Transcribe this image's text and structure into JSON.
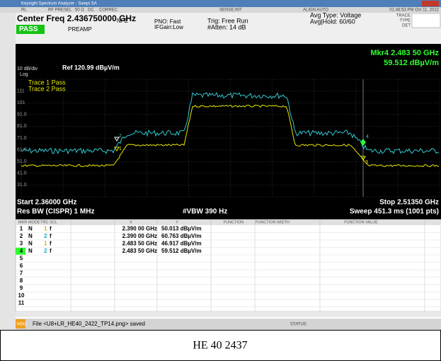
{
  "titlebar": {
    "title": "Keysight Spectrum Analyzer - Swept SA"
  },
  "status_row": {
    "rl": "RL",
    "rf_presel": "RF PRESEL",
    "impedance": "50 Ω",
    "coupling": "DC",
    "correc": "CORREC",
    "sense": "SENSE:INT",
    "align": "ALIGN AUTO",
    "datetime": "01:48:53 PM Oct 11, 2022"
  },
  "header": {
    "center_freq": "Center Freq 2.436750000 GHz",
    "pass": "PASS",
    "preamp": "PREAMP",
    "nfe": "NFE",
    "pno": "PNO: Fast",
    "ifgain": "IFGain:Low",
    "trig": "Trig: Free Run",
    "atten": "#Atten: 14 dB",
    "avg_type": "Avg Type: Voltage",
    "avg_hold": "Avg|Hold: 60/60",
    "trace": "TRACE",
    "type": "TYPE",
    "det": "DET"
  },
  "plot": {
    "scale": "10 dB/div",
    "log": "Log",
    "ref": "Ref 120.99 dBµV/m",
    "marker_freq": "Mkr4 2.483 50 GHz",
    "marker_level": "59.512 dBµV/m",
    "trace1": "Trace 1 Pass",
    "trace2": "Trace 2 Pass",
    "y_labels": [
      "111",
      "101",
      "91.0",
      "81.0",
      "71.0",
      "61.0",
      "51.0",
      "41.0",
      "31.0"
    ],
    "markers": [
      "1",
      "2",
      "3",
      "4"
    ]
  },
  "footer": {
    "start": "Start 2.36000 GHz",
    "stop": "Stop 2.51350 GHz",
    "rbw": "Res BW (CISPR) 1 MHz",
    "vbw": "#VBW 390 Hz",
    "sweep": "Sweep  451.3 ms (1001 pts)"
  },
  "table": {
    "headers": [
      "MKR",
      "MODE",
      "TRC",
      "SCL",
      "X",
      "Y",
      "FUNCTION",
      "FUNCTION WIDTH",
      "FUNCTION VALUE"
    ],
    "rows": [
      [
        "1",
        "N",
        "1",
        "f",
        "2.390 00 GHz",
        "50.013 dBµV/m"
      ],
      [
        "2",
        "N",
        "2",
        "f",
        "2.390 00 GHz",
        "60.763 dBµV/m"
      ],
      [
        "3",
        "N",
        "1",
        "f",
        "2.483 50 GHz",
        "46.917 dBµV/m"
      ],
      [
        "4",
        "N",
        "2",
        "f",
        "2.483 50 GHz",
        "59.512 dBµV/m"
      ],
      [
        "5"
      ],
      [
        "6"
      ],
      [
        "7"
      ],
      [
        "8"
      ],
      [
        "9"
      ],
      [
        "10"
      ],
      [
        "11"
      ]
    ]
  },
  "messagebar": {
    "msg": "MSG",
    "file": "File <U8+LR_HE40_2422_TP14.png> saved",
    "status": "STATUS"
  },
  "caption": "HE 40 2437"
}
